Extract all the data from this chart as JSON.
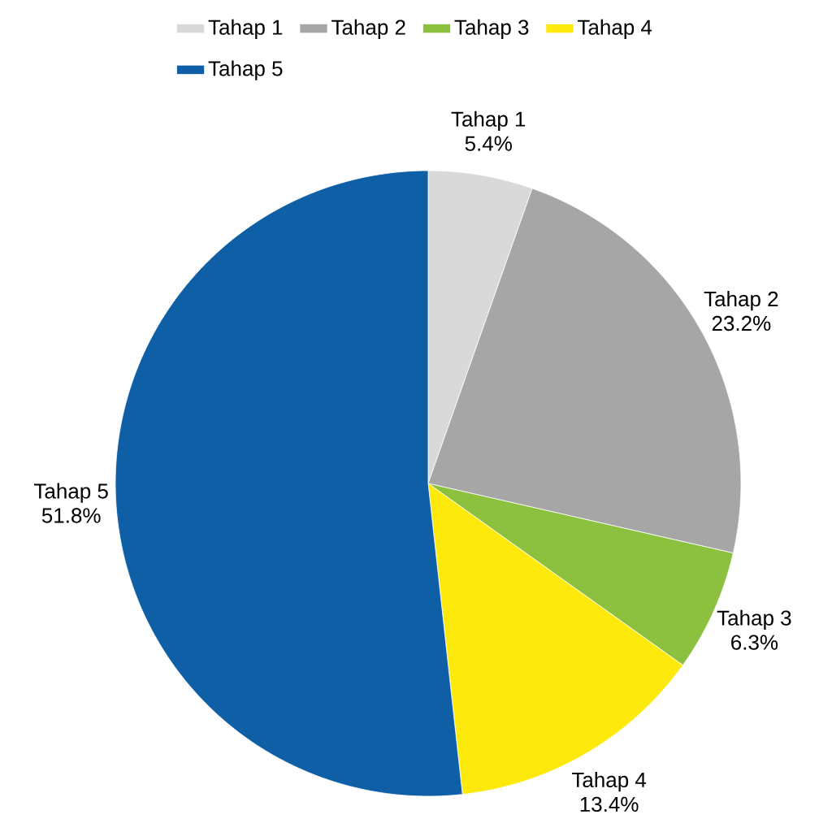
{
  "chart_data": {
    "type": "pie",
    "categories": [
      "Tahap 1",
      "Tahap 2",
      "Tahap 3",
      "Tahap 4",
      "Tahap 5"
    ],
    "values": [
      5.4,
      23.2,
      6.3,
      13.4,
      51.8
    ],
    "colors": [
      "#d9d9d9",
      "#a6a6a6",
      "#8bc13f",
      "#fde90c",
      "#0f5fa6"
    ],
    "value_labels": [
      "5.4%",
      "23.2%",
      "6.3%",
      "13.4%",
      "51.8%"
    ],
    "legend": "top"
  }
}
